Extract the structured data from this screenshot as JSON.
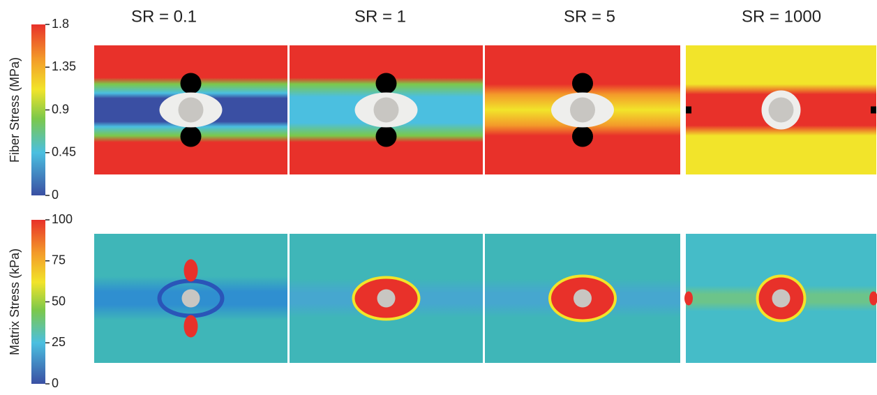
{
  "columns": [
    "SR = 0.1",
    "SR = 1",
    "SR = 5",
    "SR = 1000"
  ],
  "rows": [
    {
      "colorbar_label": "Fiber Stress (MPa)",
      "colorbar_ticks": [
        1.8,
        1.35,
        0.9,
        0.45,
        0
      ]
    },
    {
      "colorbar_label": "Matrix Stress (kPa)",
      "colorbar_ticks": [
        100,
        75,
        50,
        25,
        0
      ]
    }
  ]
}
